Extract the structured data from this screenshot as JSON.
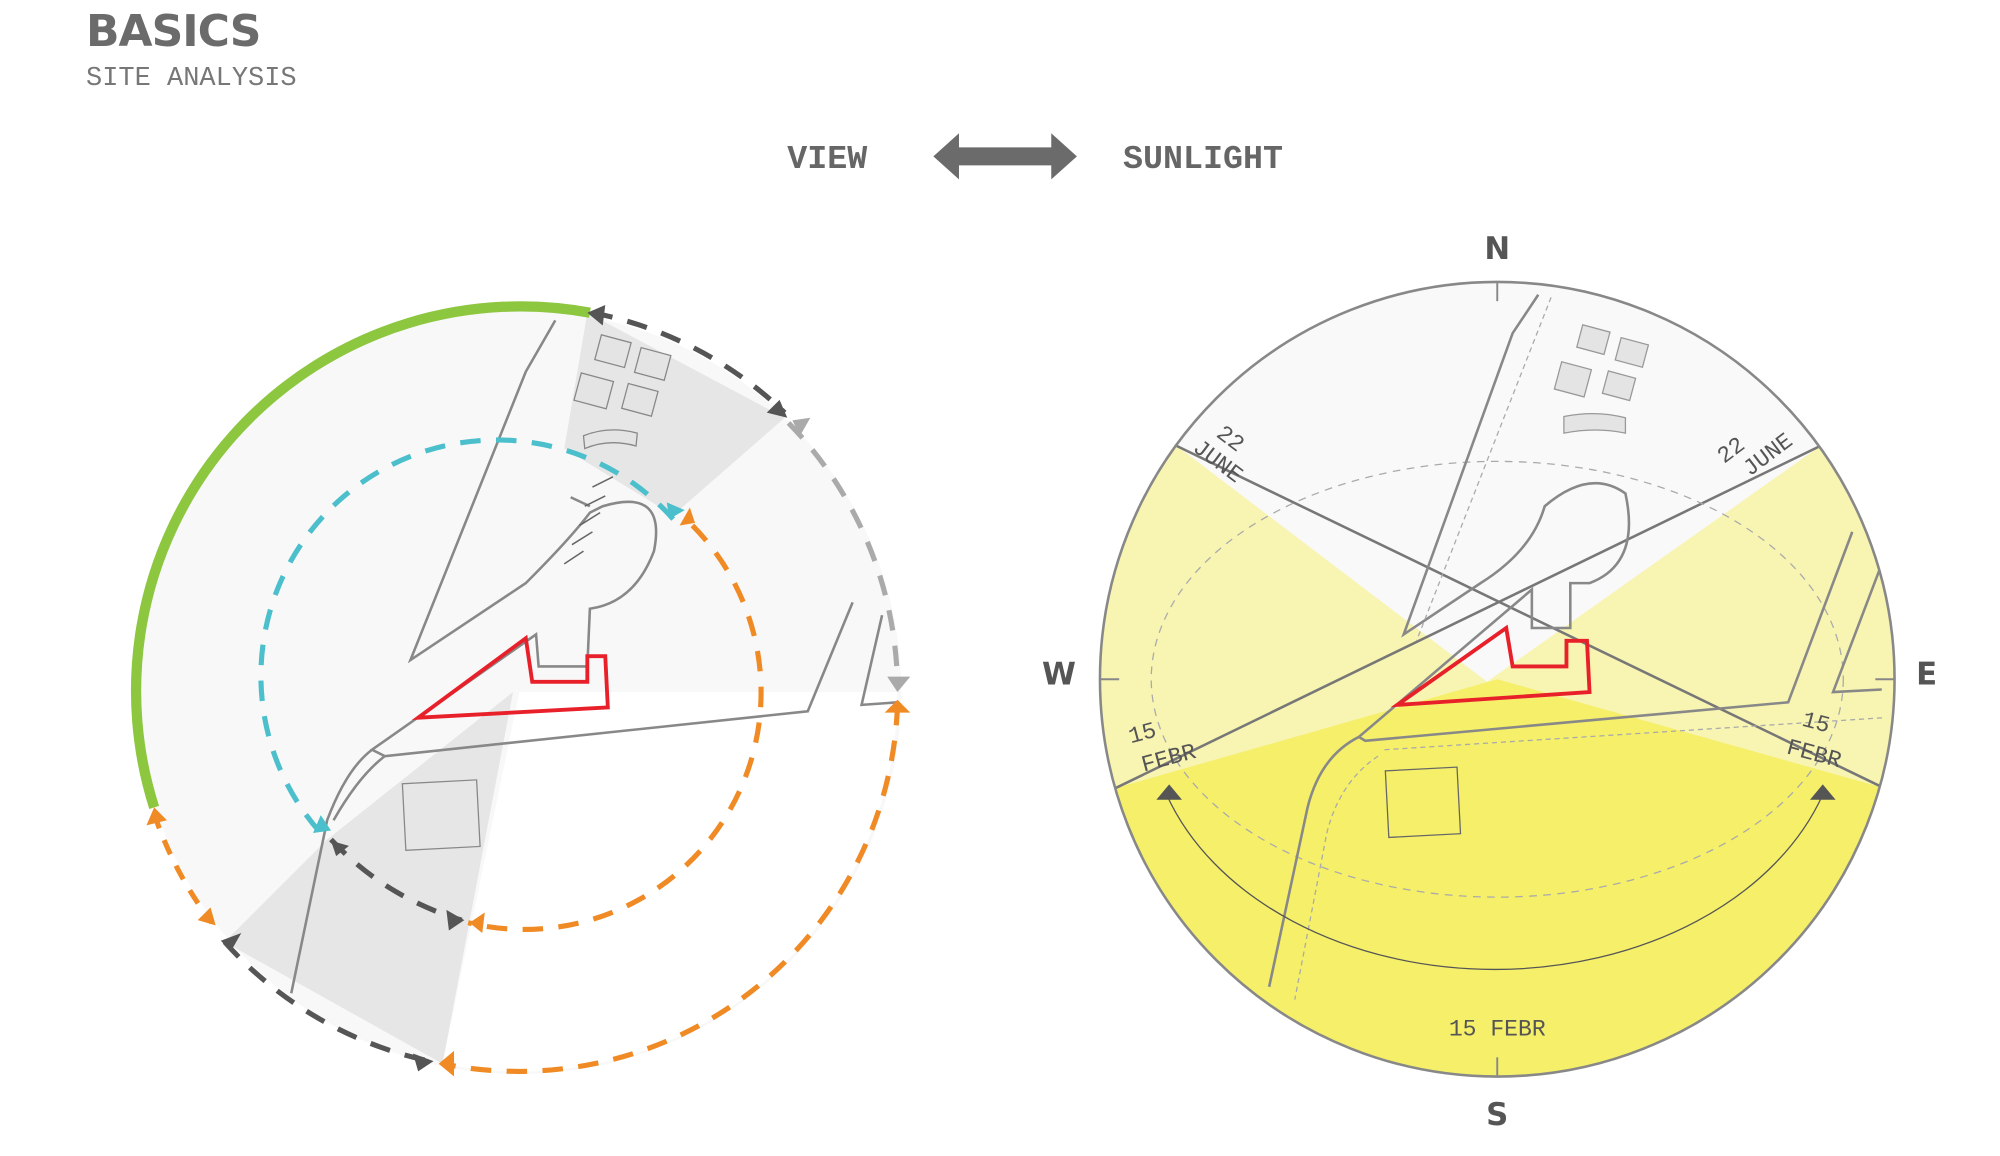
{
  "header": {
    "title": "BASICS",
    "subtitle": "SITE ANALYSIS"
  },
  "toggle": {
    "left_label": "VIEW",
    "right_label": "SUNLIGHT",
    "icon": "double-arrow-icon"
  },
  "compass": {
    "north": "N",
    "south": "S",
    "west": "W",
    "east": "E"
  },
  "sun_labels": {
    "june_west_day": "22",
    "june_west_month": "JUNE",
    "june_east_day": "22",
    "june_east_month": "JUNE",
    "febr_west_day": "15",
    "febr_west_month": "FEBR",
    "febr_east_day": "15",
    "febr_east_month": "FEBR",
    "febr_south": "15 FEBR"
  },
  "colors": {
    "site_outline": "#e8202a",
    "panorama_arc": "#8dc63f",
    "inner_view": "#4bbfcb",
    "orange_view": "#f08a24",
    "dark_view": "#555555",
    "sun_winter": "#f5ef6a",
    "sun_summer": "#f8f4b2"
  }
}
